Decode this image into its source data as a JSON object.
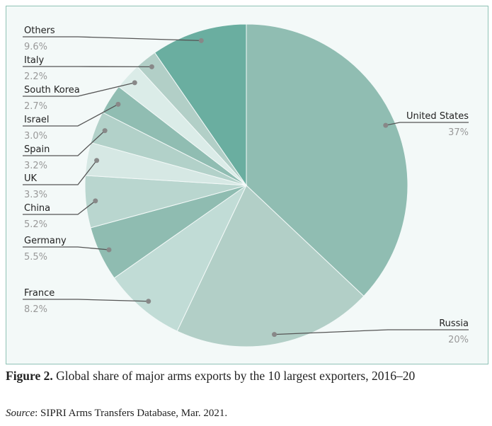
{
  "chart_data": {
    "type": "pie",
    "categories": [
      "United States",
      "Russia",
      "France",
      "Germany",
      "China",
      "UK",
      "Spain",
      "Israel",
      "South Korea",
      "Italy",
      "Others"
    ],
    "values": [
      37,
      20,
      8.2,
      5.5,
      5.2,
      3.3,
      3.2,
      3.0,
      2.7,
      2.2,
      9.6
    ],
    "value_labels": [
      "37%",
      "20%",
      "8.2%",
      "5.5%",
      "5.2%",
      "3.3%",
      "3.2%",
      "3.0%",
      "2.7%",
      "2.2%",
      "9.6%"
    ],
    "colors": [
      "#90bdb2",
      "#b2cfc7",
      "#c1dcd6",
      "#8fbcb1",
      "#b9d6cf",
      "#d6e8e4",
      "#b2d1c9",
      "#90bdb2",
      "#dbece8",
      "#b2cfc7",
      "#6aaea0"
    ]
  },
  "caption": {
    "label": "Figure 2.",
    "text": " Global share of major arms exports by the 10 largest exporters, 2016–20"
  },
  "source": {
    "label": "Source",
    "text": ": SIPRI Arms Transfers Database, Mar. 2021."
  }
}
